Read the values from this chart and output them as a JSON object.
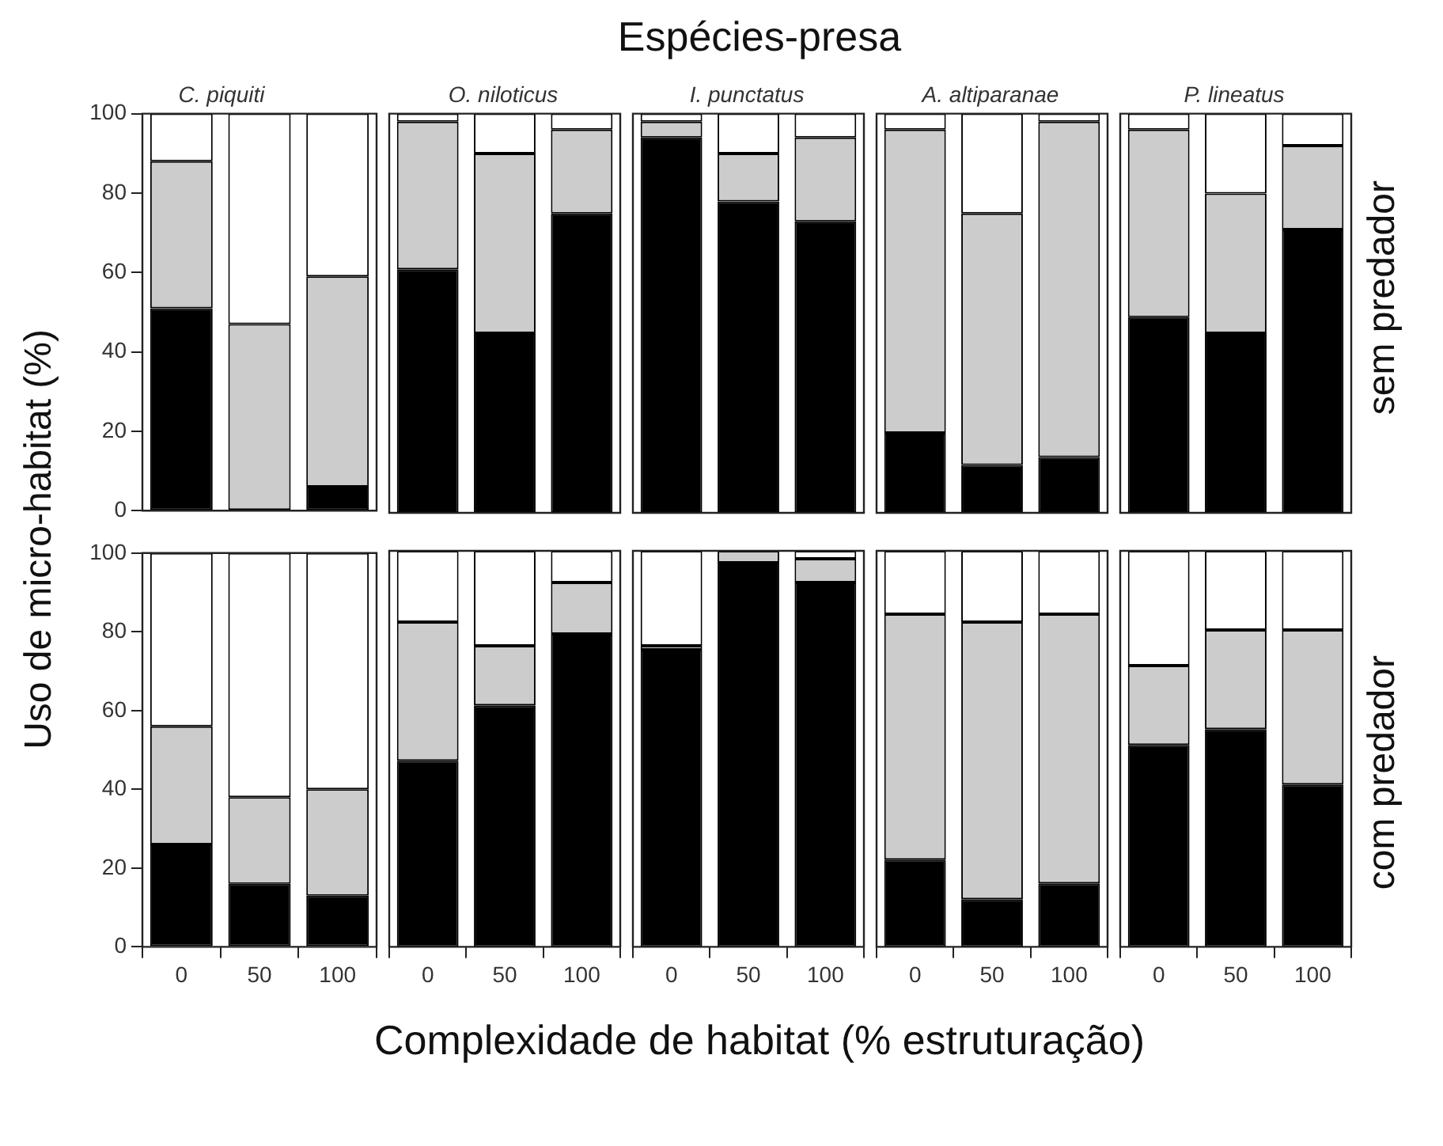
{
  "chart_data": [
    {
      "type": "bar",
      "stacked": true,
      "title": "C. piquiti",
      "ylabel": "Uso de micro-habitat (%)",
      "categories": [
        "0",
        "50",
        "100"
      ],
      "series": [
        {
          "color": "#000000",
          "values": [
            51,
            0,
            6
          ]
        },
        {
          "color": "#cccccc",
          "values": [
            37,
            47,
            53
          ]
        },
        {
          "color": "#ffffff",
          "values": [
            12,
            53,
            41
          ]
        }
      ],
      "ylim": [
        0,
        100
      ],
      "yticks": [
        0,
        20,
        40,
        60,
        80,
        100
      ],
      "tick_labels": "y"
    },
    {
      "type": "bar",
      "stacked": true,
      "title": "O. niloticus",
      "categories": [
        "0",
        "50",
        "100"
      ],
      "series": [
        {
          "color": "#000000",
          "values": [
            61,
            45,
            75
          ]
        },
        {
          "color": "#cccccc",
          "values": [
            37,
            45,
            21
          ]
        },
        {
          "color": "#ffffff",
          "values": [
            2,
            10,
            4
          ]
        }
      ],
      "ylim": [
        0,
        100
      ],
      "tick_labels": false
    },
    {
      "type": "bar",
      "stacked": true,
      "title": "I. punctatus",
      "annotations": [
        "Espécies-presa"
      ],
      "categories": [
        "0",
        "50",
        "100"
      ],
      "series": [
        {
          "color": "#000000",
          "values": [
            94,
            78,
            73
          ]
        },
        {
          "color": "#cccccc",
          "values": [
            4,
            12,
            21
          ]
        },
        {
          "color": "#ffffff",
          "values": [
            2,
            10,
            6
          ]
        }
      ],
      "ylim": [
        0,
        100
      ],
      "tick_labels": false
    },
    {
      "type": "bar",
      "stacked": true,
      "title": "A. altiparanae",
      "categories": [
        "0",
        "50",
        "100"
      ],
      "series": [
        {
          "color": "#000000",
          "values": [
            20,
            12,
            14
          ]
        },
        {
          "color": "#cccccc",
          "values": [
            76,
            63,
            84
          ]
        },
        {
          "color": "#ffffff",
          "values": [
            4,
            25,
            2
          ]
        }
      ],
      "ylim": [
        0,
        100
      ],
      "tick_labels": false
    },
    {
      "type": "bar",
      "stacked": true,
      "title": "P. lineatus",
      "y2label": "sem predador",
      "categories": [
        "0",
        "50",
        "100"
      ],
      "series": [
        {
          "color": "#000000",
          "values": [
            49,
            45,
            71
          ]
        },
        {
          "color": "#cccccc",
          "values": [
            47,
            35,
            21
          ]
        },
        {
          "color": "#ffffff",
          "values": [
            4,
            20,
            8
          ]
        }
      ],
      "ylim": [
        0,
        100
      ],
      "tick_labels": false
    },
    {
      "type": "bar",
      "stacked": true,
      "categories": [
        "0",
        "50",
        "100"
      ],
      "series": [
        {
          "color": "#000000",
          "values": [
            26,
            16,
            13
          ]
        },
        {
          "color": "#cccccc",
          "values": [
            30,
            22,
            27
          ]
        },
        {
          "color": "#ffffff",
          "values": [
            44,
            62,
            60
          ]
        }
      ],
      "ylim": [
        0,
        100
      ],
      "yticks": [
        0,
        20,
        40,
        60,
        80,
        100
      ]
    },
    {
      "type": "bar",
      "stacked": true,
      "categories": [
        "0",
        "50",
        "100"
      ],
      "series": [
        {
          "color": "#000000",
          "values": [
            47,
            61,
            79
          ]
        },
        {
          "color": "#cccccc",
          "values": [
            35,
            15,
            13
          ]
        },
        {
          "color": "#ffffff",
          "values": [
            18,
            24,
            8
          ]
        }
      ],
      "ylim": [
        0,
        100
      ],
      "tick_labels": "x"
    },
    {
      "type": "bar",
      "stacked": true,
      "xlabel": "Complexidade de habitat (% estruturação)",
      "categories": [
        "0",
        "50",
        "100"
      ],
      "series": [
        {
          "color": "#000000",
          "values": [
            75,
            97,
            92
          ]
        },
        {
          "color": "#cccccc",
          "values": [
            1,
            3,
            6
          ]
        },
        {
          "color": "#ffffff",
          "values": [
            24,
            0,
            2
          ]
        }
      ],
      "ylim": [
        0,
        100
      ],
      "tick_labels": "x"
    },
    {
      "type": "bar",
      "stacked": true,
      "categories": [
        "0",
        "50",
        "100"
      ],
      "series": [
        {
          "color": "#000000",
          "values": [
            22,
            12,
            16
          ]
        },
        {
          "color": "#cccccc",
          "values": [
            62,
            70,
            68
          ]
        },
        {
          "color": "#ffffff",
          "values": [
            16,
            18,
            16
          ]
        }
      ],
      "ylim": [
        0,
        100
      ],
      "tick_labels": "x"
    },
    {
      "type": "bar",
      "stacked": true,
      "y2label": "com predador",
      "categories": [
        "0",
        "50",
        "100"
      ],
      "series": [
        {
          "color": "#000000",
          "values": [
            51,
            55,
            41
          ]
        },
        {
          "color": "#cccccc",
          "values": [
            20,
            25,
            39
          ]
        },
        {
          "color": "#ffffff",
          "values": [
            29,
            20,
            20
          ]
        }
      ],
      "ylim": [
        0,
        100
      ],
      "tick_labels": "x"
    }
  ]
}
